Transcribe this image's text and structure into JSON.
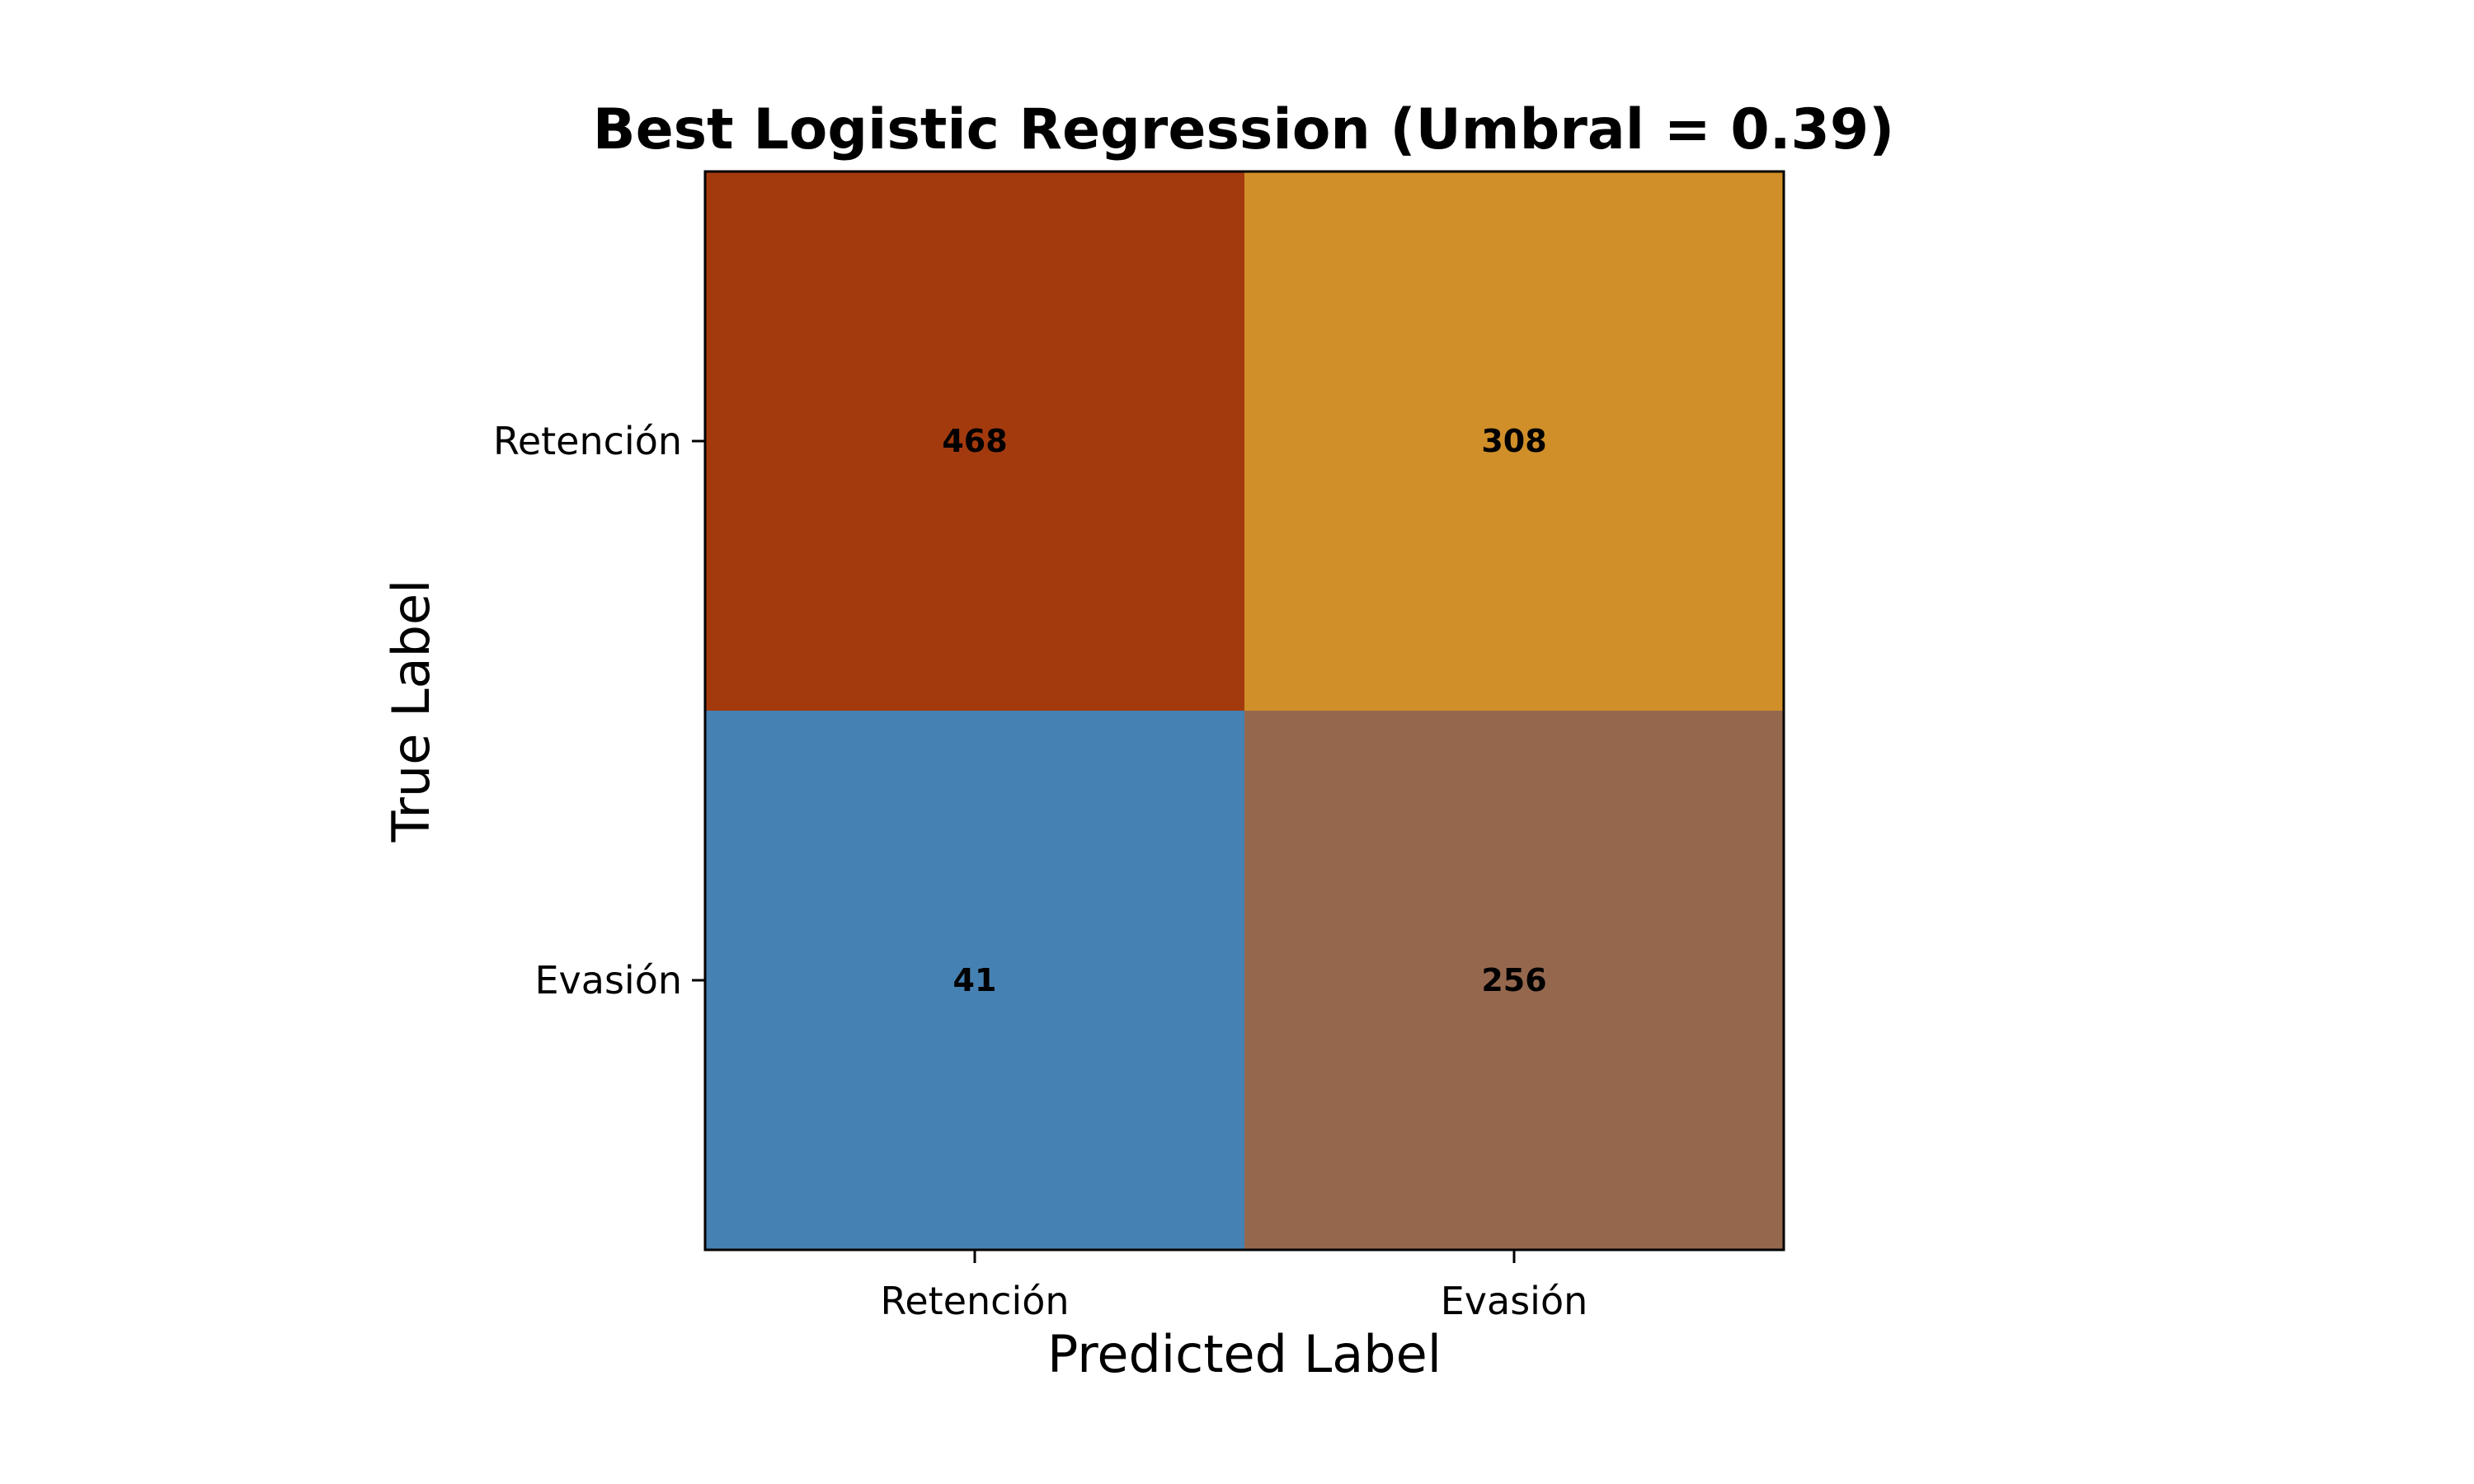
{
  "chart_data": {
    "type": "heatmap",
    "title": "Best Logistic Regression (Umbral = 0.39)",
    "xlabel": "Predicted Label",
    "ylabel": "True Label",
    "x_categories": [
      "Retención",
      "Evasión"
    ],
    "y_categories": [
      "Retención",
      "Evasión"
    ],
    "values": [
      [
        468,
        308
      ],
      [
        41,
        256
      ]
    ],
    "cell_colors": [
      [
        "#a33a0e",
        "#d08f29"
      ],
      [
        "#4681b3",
        "#95684e"
      ]
    ],
    "grid": false,
    "colorbar": false
  }
}
